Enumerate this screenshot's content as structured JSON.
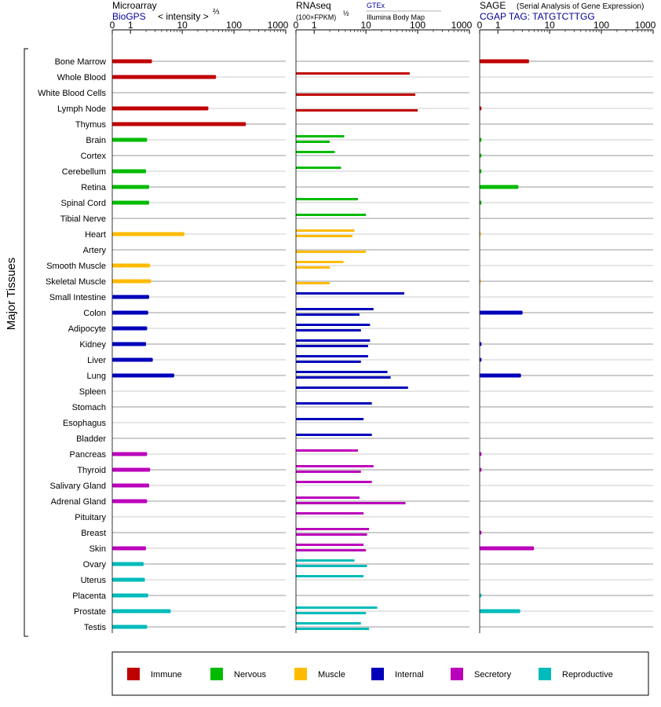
{
  "panels": {
    "microarray": {
      "title": "Microarray",
      "source": "BioGPS",
      "unit": "< intensity >",
      "unit_exponent": "⅔"
    },
    "rnaseq": {
      "title": "RNAseq",
      "unit": "(100×FPKM)",
      "unit_exponent": "½",
      "source_1": "GTEx",
      "source_2": "Illumina Body Map"
    },
    "sage": {
      "title": "SAGE",
      "subtitle": "(Serial Analysis of Gene Expression)",
      "tag": "CGAP TAG: TATGTCTTGG"
    }
  },
  "y_axis_label": "Major Tissues",
  "legend": [
    {
      "label": "Immune",
      "color": "#c00000"
    },
    {
      "label": "Nervous",
      "color": "#00bb00"
    },
    {
      "label": "Muscle",
      "color": "#ffbb00"
    },
    {
      "label": "Internal",
      "color": "#0000bb"
    },
    {
      "label": "Secretory",
      "color": "#bb00bb"
    },
    {
      "label": "Reproductive",
      "color": "#00bbbb"
    }
  ],
  "chart_data": {
    "type": "bar",
    "x_scale": "log",
    "x_ticks": [
      "0",
      "1",
      "10",
      "100",
      "1000"
    ],
    "xlim": [
      0,
      1000
    ],
    "categories": [
      "Bone Marrow",
      "Whole Blood",
      "White Blood Cells",
      "Lymph Node",
      "Thymus",
      "Brain",
      "Cortex",
      "Cerebellum",
      "Retina",
      "Spinal Cord",
      "Tibial Nerve",
      "Heart",
      "Artery",
      "Smooth Muscle",
      "Skeletal Muscle",
      "Small Intestine",
      "Colon",
      "Adipocyte",
      "Kidney",
      "Liver",
      "Lung",
      "Spleen",
      "Stomach",
      "Esophagus",
      "Bladder",
      "Pancreas",
      "Thyroid",
      "Salivary Gland",
      "Adrenal Gland",
      "Pituitary",
      "Breast",
      "Skin",
      "Ovary",
      "Uterus",
      "Placenta",
      "Prostate",
      "Testis"
    ],
    "tissue_system": [
      "Immune",
      "Immune",
      "Immune",
      "Immune",
      "Immune",
      "Nervous",
      "Nervous",
      "Nervous",
      "Nervous",
      "Nervous",
      "Nervous",
      "Muscle",
      "Muscle",
      "Muscle",
      "Muscle",
      "Internal",
      "Internal",
      "Internal",
      "Internal",
      "Internal",
      "Internal",
      "Internal",
      "Internal",
      "Internal",
      "Internal",
      "Secretory",
      "Secretory",
      "Secretory",
      "Secretory",
      "Secretory",
      "Secretory",
      "Secretory",
      "Reproductive",
      "Reproductive",
      "Reproductive",
      "Reproductive",
      "Reproductive"
    ],
    "series": [
      {
        "name": "Microarray",
        "values": [
          2.6,
          45,
          null,
          32,
          170,
          2.1,
          null,
          2.0,
          2.3,
          2.3,
          null,
          11,
          null,
          2.4,
          2.5,
          2.3,
          2.2,
          2.1,
          2.0,
          2.7,
          7,
          null,
          null,
          null,
          null,
          2.1,
          2.4,
          2.3,
          2.1,
          null,
          null,
          2.0,
          1.8,
          1.9,
          2.2,
          6,
          2.1
        ]
      },
      {
        "name": "GTEx",
        "values": [
          null,
          70,
          null,
          null,
          null,
          3.8,
          2.5,
          3.3,
          null,
          7,
          10,
          6,
          null,
          3.7,
          null,
          55,
          14,
          12,
          12,
          11,
          26,
          65,
          13,
          9,
          13,
          7,
          14,
          13,
          7.5,
          9,
          11.5,
          9,
          6,
          9,
          null,
          16.5,
          8
        ]
      },
      {
        "name": "Illumina Body Map",
        "values": [
          null,
          null,
          90,
          100,
          null,
          2.0,
          null,
          null,
          null,
          null,
          null,
          5.5,
          10,
          2.0,
          2.0,
          null,
          7.5,
          8,
          11,
          8,
          30,
          null,
          null,
          null,
          null,
          null,
          8,
          null,
          58,
          null,
          10.5,
          10,
          10.5,
          null,
          null,
          10,
          11.5
        ]
      },
      {
        "name": "SAGE",
        "values": [
          4,
          null,
          null,
          0.1,
          null,
          0.1,
          0.1,
          0.1,
          2.5,
          0.1,
          null,
          0.05,
          null,
          null,
          0.05,
          null,
          3.0,
          null,
          0.1,
          0.1,
          2.8,
          null,
          null,
          null,
          null,
          0.1,
          0.1,
          null,
          null,
          null,
          0.1,
          5,
          null,
          null,
          0.1,
          2.7,
          null
        ]
      }
    ]
  }
}
